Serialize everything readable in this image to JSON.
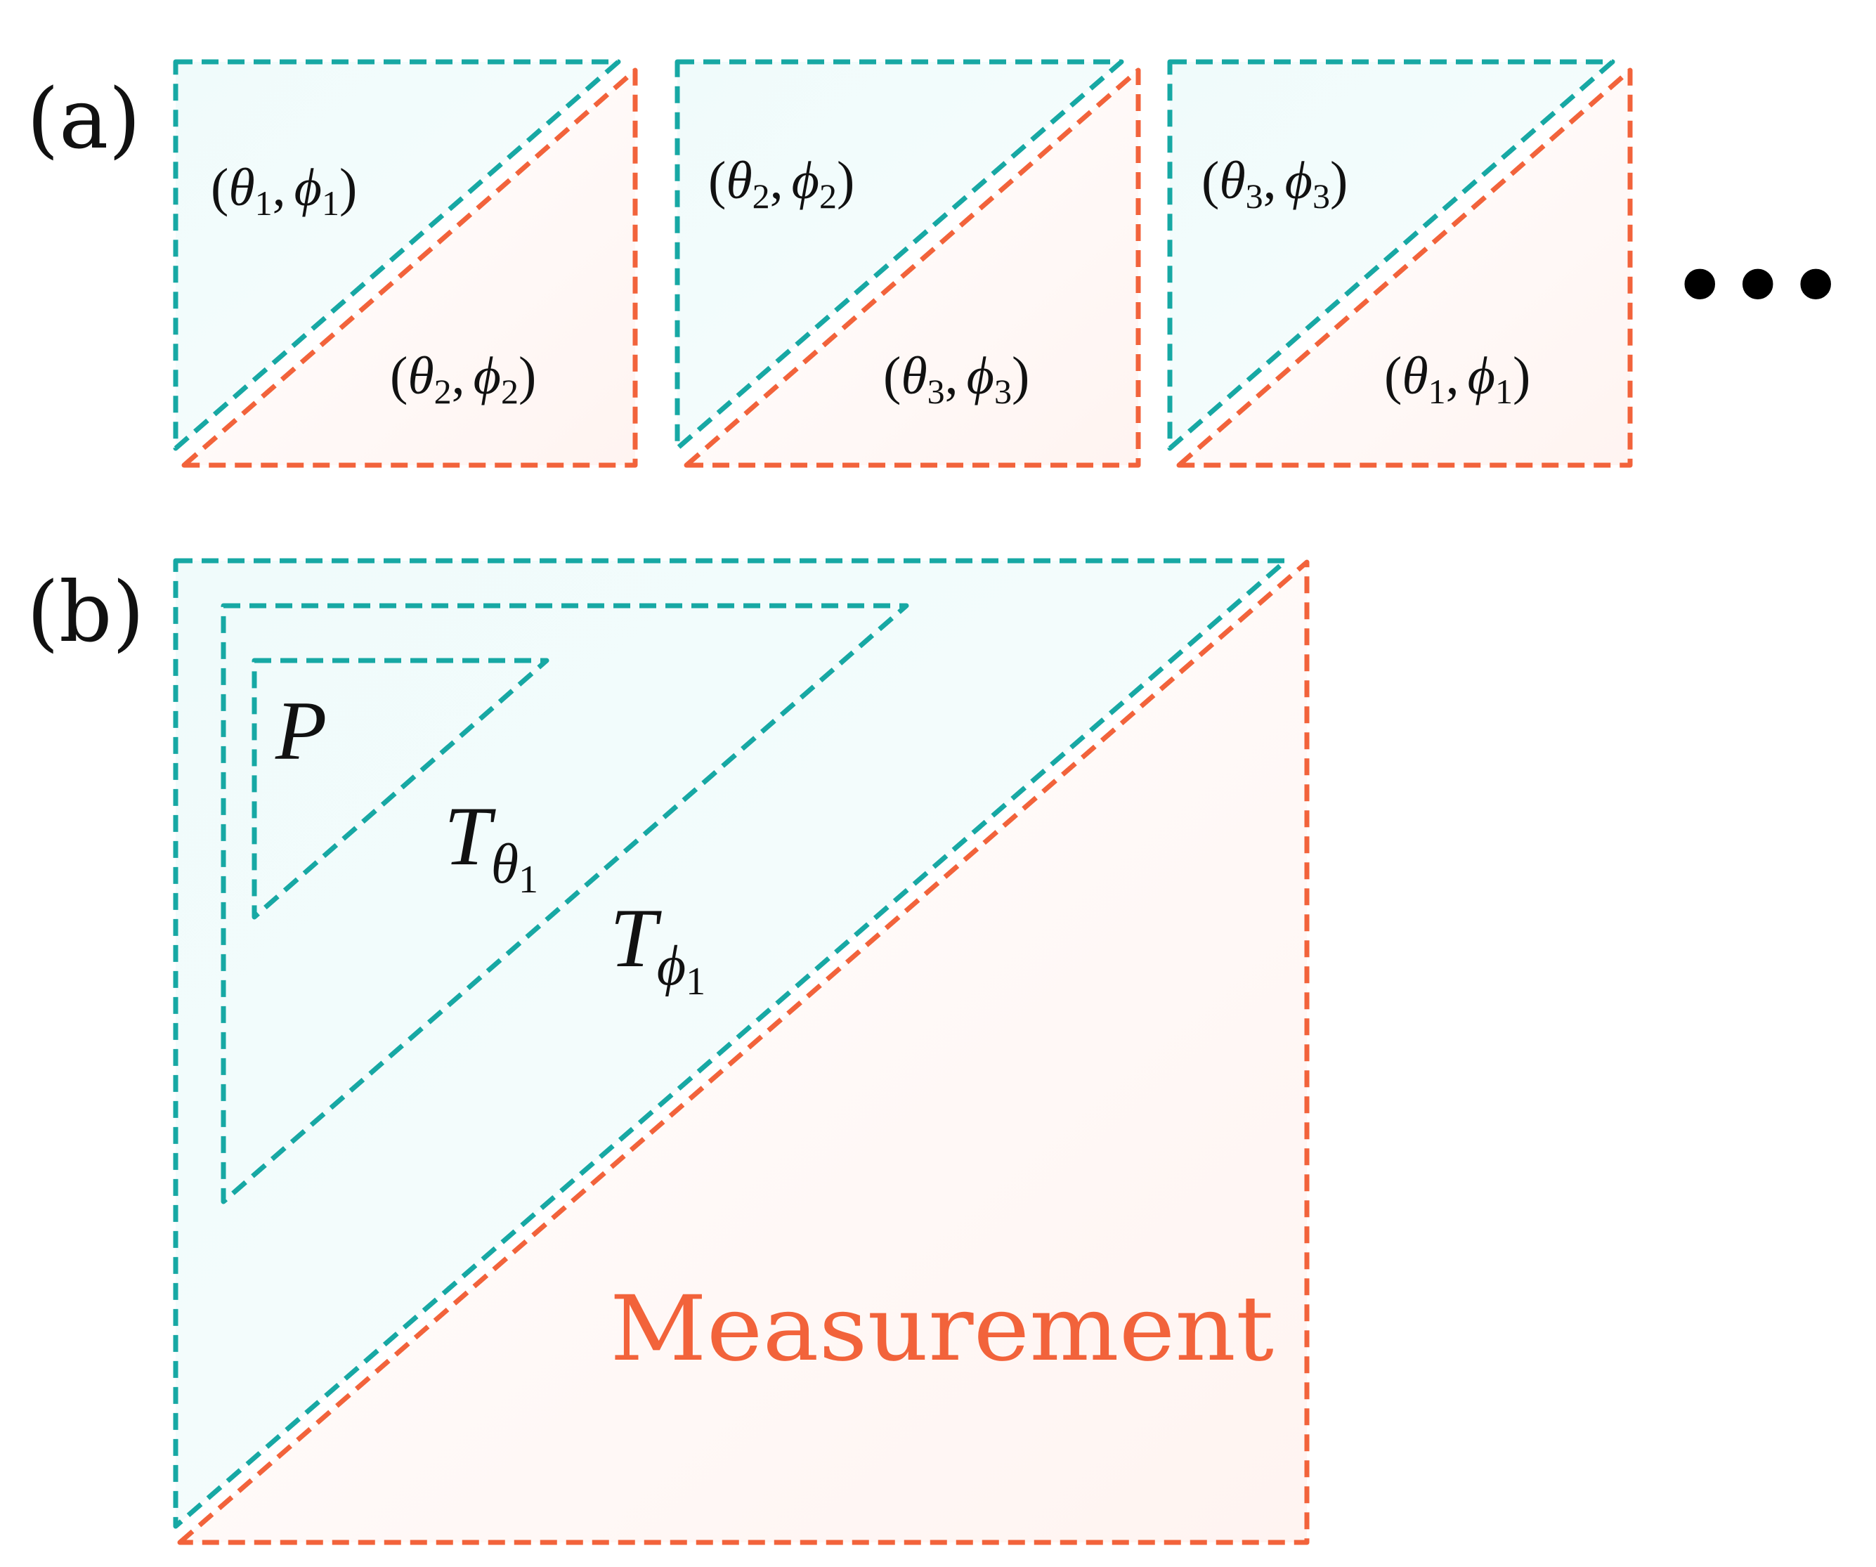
{
  "colors": {
    "teal": "#17A8A4",
    "orange": "#F2633B",
    "teal_fill": "#F2FCFC",
    "orange_fill": "#FFF6F4",
    "text": "#111111",
    "measurement_text": "#F2633B"
  },
  "panel_a": {
    "label": "(a)",
    "ellipsis": "•••",
    "cells": [
      {
        "upper": {
          "open": "(",
          "t1": "θ",
          "s1": "1",
          "comma": ",",
          "t2": "ϕ",
          "s2": "1",
          "close": ")"
        },
        "lower": {
          "open": "(",
          "t1": "θ",
          "s1": "2",
          "comma": ",",
          "t2": "ϕ",
          "s2": "2",
          "close": ")"
        }
      },
      {
        "upper": {
          "open": "(",
          "t1": "θ",
          "s1": "2",
          "comma": ",",
          "t2": "ϕ",
          "s2": "2",
          "close": ")"
        },
        "lower": {
          "open": "(",
          "t1": "θ",
          "s1": "3",
          "comma": ",",
          "t2": "ϕ",
          "s2": "3",
          "close": ")"
        }
      },
      {
        "upper": {
          "open": "(",
          "t1": "θ",
          "s1": "3",
          "comma": ",",
          "t2": "ϕ",
          "s2": "3",
          "close": ")"
        },
        "lower": {
          "open": "(",
          "t1": "θ",
          "s1": "1",
          "comma": ",",
          "t2": "ϕ",
          "s2": "1",
          "close": ")"
        }
      }
    ]
  },
  "panel_b": {
    "label": "(b)",
    "p_label": "P",
    "t_theta": {
      "base": "T",
      "sub": "θ",
      "subsub": "1"
    },
    "t_phi": {
      "base": "T",
      "sub": "ϕ",
      "subsub": "1"
    },
    "measurement": "Measurement"
  }
}
